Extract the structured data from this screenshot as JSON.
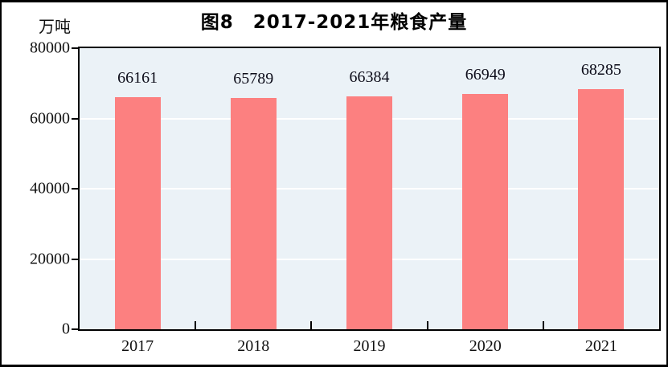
{
  "page": {
    "type": "document-figure"
  },
  "chart_data": {
    "type": "bar",
    "title": "图8　2017-2021年粮食产量",
    "unit_label": "万吨",
    "categories": [
      "2017",
      "2018",
      "2019",
      "2020",
      "2021"
    ],
    "values": [
      66161,
      65789,
      66384,
      66949,
      68285
    ],
    "value_labels_shown": true,
    "xlabel": "",
    "ylabel": "万吨",
    "ylim": [
      0,
      80000
    ],
    "yticks": [
      0,
      20000,
      40000,
      60000,
      80000
    ],
    "grid": true,
    "legend_position": "none",
    "bar_color": "#FC8080",
    "plot_background": "#EBF2F7",
    "gridline_color": "#FFFFFF",
    "axis_color": "#000000",
    "text_color": "#111111"
  }
}
